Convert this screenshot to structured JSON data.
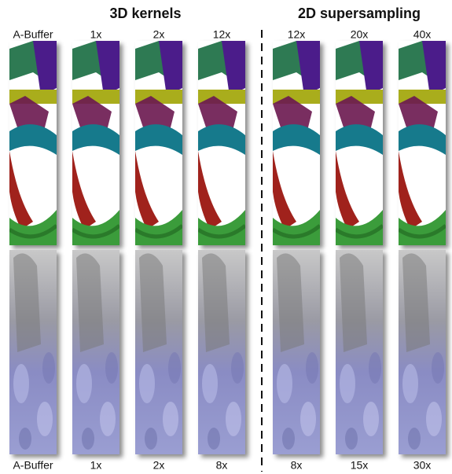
{
  "headers": {
    "left": "3D kernels",
    "right": "2D supersampling"
  },
  "top_labels": [
    "A-Buffer",
    "1x",
    "2x",
    "12x",
    "12x",
    "20x",
    "40x"
  ],
  "bottom_labels": [
    "A-Buffer",
    "1x",
    "2x",
    "8x",
    "8x",
    "15x",
    "30x"
  ]
}
